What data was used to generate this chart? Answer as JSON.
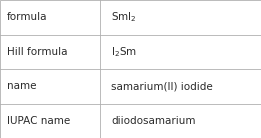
{
  "rows": [
    {
      "label": "formula",
      "value": "$\\mathregular{SmI_2}$",
      "plain": false
    },
    {
      "label": "Hill formula",
      "value": "$\\mathregular{I_2Sm}$",
      "plain": false
    },
    {
      "label": "name",
      "value": "samarium(II) iodide",
      "plain": true
    },
    {
      "label": "IUPAC name",
      "value": "diiodosamarium",
      "plain": true
    }
  ],
  "col_split": 0.385,
  "bg_color": "#ffffff",
  "border_color": "#b0b0b0",
  "text_color": "#2b2b2b",
  "label_color": "#2b2b2b",
  "font_size": 7.5,
  "lw": 0.6
}
